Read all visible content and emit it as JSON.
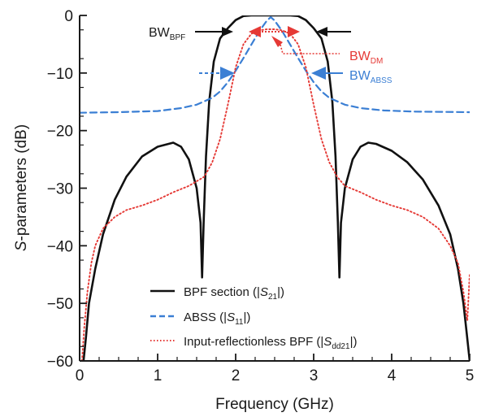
{
  "chart_data": {
    "type": "line",
    "xlabel": "Frequency (GHz)",
    "ylabel": {
      "italic": "S",
      "rest": "-parameters (dB)"
    },
    "xlim": [
      0,
      5
    ],
    "ylim": [
      -60,
      0
    ],
    "xticks": [
      "0",
      "1",
      "2",
      "3",
      "4",
      "5"
    ],
    "yticks": [
      "0",
      "−10",
      "−20",
      "−30",
      "−40",
      "−50",
      "−60"
    ],
    "grid": false,
    "legend_position": "bottom-center",
    "series": [
      {
        "name": "BPF section (|S21|)",
        "legend": {
          "pre": "BPF section (|",
          "italic": "S",
          "sub": "21",
          "post": "|)"
        },
        "color": "#111111",
        "style": "solid",
        "x": [
          0.05,
          0.08,
          0.12,
          0.2,
          0.3,
          0.45,
          0.6,
          0.8,
          1.0,
          1.2,
          1.3,
          1.4,
          1.5,
          1.55,
          1.57,
          1.59,
          1.62,
          1.66,
          1.72,
          1.8,
          1.9,
          2.0,
          2.1,
          2.2,
          2.3,
          2.4,
          2.5,
          2.6,
          2.7,
          2.8,
          2.9,
          3.0,
          3.1,
          3.18,
          3.24,
          3.28,
          3.31,
          3.33,
          3.35,
          3.4,
          3.5,
          3.6,
          3.7,
          3.8,
          4.0,
          4.2,
          4.4,
          4.6,
          4.75,
          4.85,
          4.92,
          4.96,
          5.0
        ],
        "y": [
          -60,
          -56,
          -50,
          -44,
          -38,
          -32,
          -28,
          -24.5,
          -22.8,
          -22.1,
          -22.8,
          -25,
          -30,
          -36,
          -45.5,
          -36,
          -24.5,
          -15,
          -8,
          -4,
          -2.2,
          -0.8,
          -0.1,
          0,
          0,
          0,
          0,
          0,
          0,
          -0.1,
          -0.8,
          -2.2,
          -4,
          -8,
          -15,
          -24.5,
          -36,
          -45.5,
          -36,
          -30,
          -25,
          -22.8,
          -22.1,
          -22.3,
          -23.5,
          -25.5,
          -28.5,
          -33,
          -38,
          -44,
          -50,
          -55,
          -60
        ]
      },
      {
        "name": "ABSS (|S11|)",
        "legend": {
          "pre": "ABSS (|",
          "italic": "S",
          "sub": "11",
          "post": "|)"
        },
        "color": "#3b7fd4",
        "style": "dashed",
        "x": [
          0,
          0.5,
          1.0,
          1.3,
          1.5,
          1.7,
          1.8,
          1.9,
          2.0,
          2.1,
          2.2,
          2.3,
          2.4,
          2.45,
          2.5,
          2.6,
          2.7,
          2.8,
          2.9,
          3.0,
          3.1,
          3.2,
          3.4,
          3.6,
          3.9,
          4.3,
          5.0
        ],
        "y": [
          -16.9,
          -16.8,
          -16.6,
          -16.1,
          -15.5,
          -14.3,
          -13.2,
          -11.6,
          -9.6,
          -7.4,
          -5.1,
          -2.8,
          -0.9,
          -0.3,
          -0.9,
          -2.8,
          -5.1,
          -7.4,
          -9.6,
          -11.6,
          -13.2,
          -14.3,
          -15.5,
          -16.1,
          -16.5,
          -16.7,
          -16.8
        ]
      },
      {
        "name": "Input-reflectionless BPF (|Sdd21|)",
        "legend": {
          "pre": "Input-reflectionless BPF (|",
          "italic": "S",
          "sub": "dd21",
          "post": "|)"
        },
        "color": "#e53935",
        "style": "dotted",
        "x": [
          0.03,
          0.06,
          0.1,
          0.15,
          0.2,
          0.3,
          0.45,
          0.6,
          0.8,
          1.0,
          1.2,
          1.4,
          1.6,
          1.7,
          1.8,
          1.9,
          2.0,
          2.1,
          2.2,
          2.3,
          2.4,
          2.5,
          2.6,
          2.7,
          2.8,
          2.9,
          3.0,
          3.1,
          3.2,
          3.3,
          3.4,
          3.6,
          3.8,
          4.0,
          4.2,
          4.4,
          4.6,
          4.75,
          4.85,
          4.92,
          4.97,
          5.0
        ],
        "y": [
          -60,
          -54,
          -48,
          -43,
          -40,
          -37,
          -35,
          -33.8,
          -33,
          -32,
          -30.7,
          -29.6,
          -28,
          -25.5,
          -21.5,
          -15.5,
          -9,
          -5,
          -3.2,
          -2.6,
          -2.4,
          -2.4,
          -2.6,
          -3.2,
          -5,
          -9,
          -15.5,
          -21.5,
          -25.5,
          -28,
          -29.6,
          -30.7,
          -32,
          -33,
          -33.8,
          -35,
          -37,
          -40,
          -43,
          -48,
          -53,
          -45
        ]
      }
    ],
    "annotations": {
      "bw_bpf": {
        "main": "BW",
        "sub": "BPF"
      },
      "bw_dm": {
        "main": "BW",
        "sub": "DM"
      },
      "bw_abss": {
        "main": "BW",
        "sub": "ABSS"
      }
    },
    "colors": {
      "axis": "#1a1a1a",
      "bpf": "#111111",
      "abss": "#3b7fd4",
      "dm": "#e53935"
    }
  }
}
